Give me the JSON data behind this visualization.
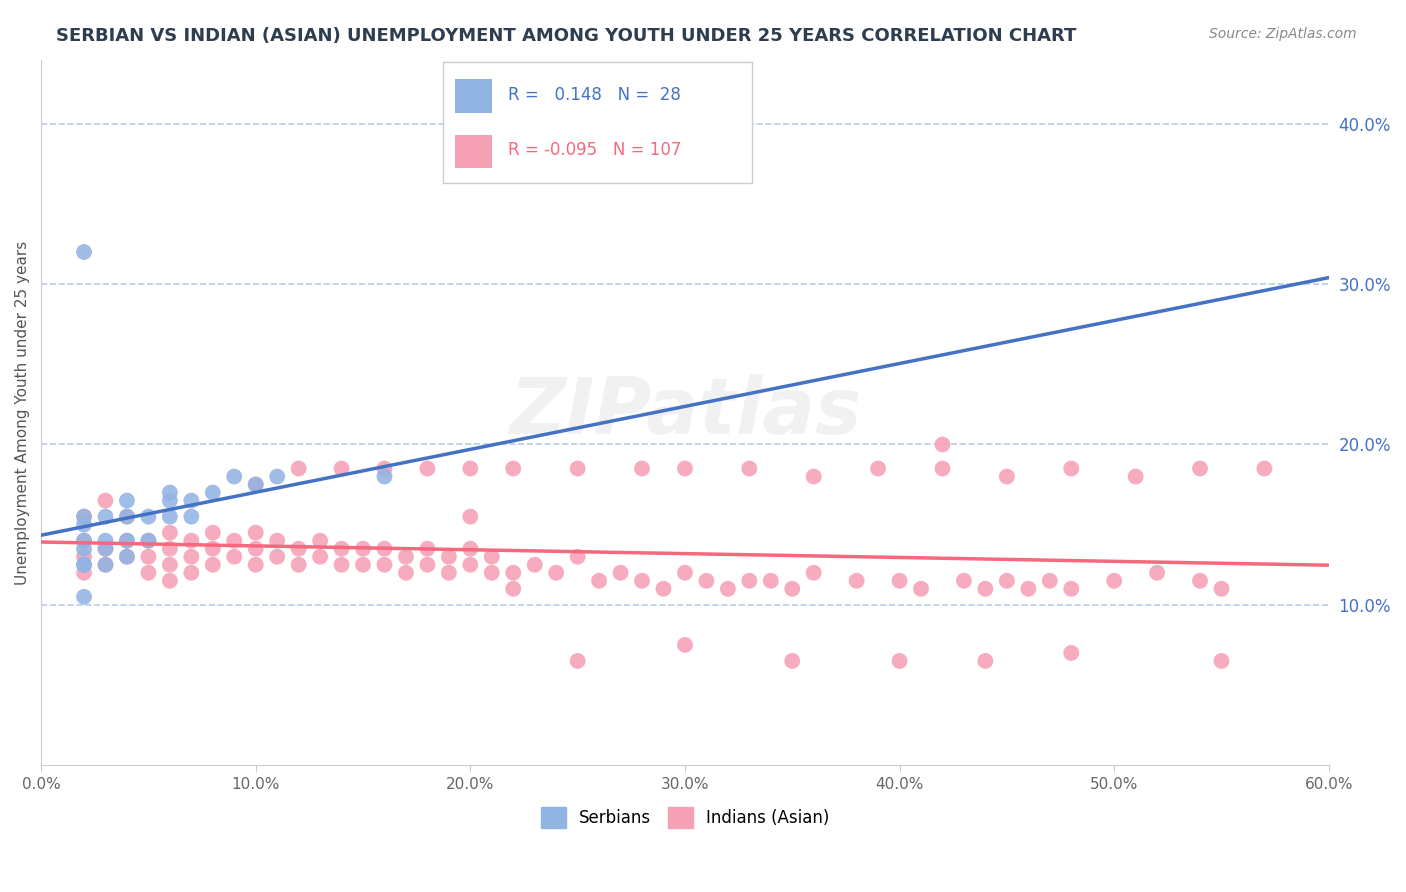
{
  "title": "SERBIAN VS INDIAN (ASIAN) UNEMPLOYMENT AMONG YOUTH UNDER 25 YEARS CORRELATION CHART",
  "source": "Source: ZipAtlas.com",
  "ylabel": "Unemployment Among Youth under 25 years",
  "xlim": [
    0.0,
    0.6
  ],
  "ylim": [
    0.0,
    0.44
  ],
  "xticks": [
    0.0,
    0.1,
    0.2,
    0.3,
    0.4,
    0.5,
    0.6
  ],
  "ytick_labels_right": [
    0.1,
    0.2,
    0.3,
    0.4
  ],
  "background_color": "#ffffff",
  "serbian_color": "#92b4e3",
  "indian_color": "#f5a0b5",
  "serbian_line_color": "#4472c4",
  "indian_line_color": "#f5687e",
  "dashed_line_color": "#b0c8e8",
  "R_serbian": 0.148,
  "N_serbian": 28,
  "R_indian": -0.095,
  "N_indian": 107,
  "serb_x": [
    0.02,
    0.02,
    0.02,
    0.02,
    0.02,
    0.02,
    0.02,
    0.02,
    0.03,
    0.03,
    0.03,
    0.03,
    0.04,
    0.04,
    0.04,
    0.04,
    0.05,
    0.05,
    0.06,
    0.06,
    0.06,
    0.07,
    0.07,
    0.08,
    0.09,
    0.1,
    0.11,
    0.16
  ],
  "serb_y": [
    0.125,
    0.105,
    0.125,
    0.135,
    0.14,
    0.15,
    0.155,
    0.32,
    0.125,
    0.135,
    0.14,
    0.155,
    0.13,
    0.14,
    0.155,
    0.165,
    0.14,
    0.155,
    0.155,
    0.165,
    0.17,
    0.155,
    0.165,
    0.17,
    0.18,
    0.175,
    0.18,
    0.18
  ],
  "ind_x": [
    0.02,
    0.02,
    0.02,
    0.02,
    0.03,
    0.03,
    0.03,
    0.04,
    0.04,
    0.04,
    0.05,
    0.05,
    0.05,
    0.06,
    0.06,
    0.06,
    0.06,
    0.07,
    0.07,
    0.07,
    0.08,
    0.08,
    0.08,
    0.09,
    0.09,
    0.1,
    0.1,
    0.1,
    0.11,
    0.11,
    0.12,
    0.12,
    0.13,
    0.13,
    0.14,
    0.14,
    0.15,
    0.15,
    0.16,
    0.16,
    0.17,
    0.17,
    0.18,
    0.18,
    0.19,
    0.19,
    0.2,
    0.2,
    0.21,
    0.21,
    0.22,
    0.22,
    0.23,
    0.24,
    0.25,
    0.26,
    0.27,
    0.28,
    0.29,
    0.3,
    0.31,
    0.32,
    0.33,
    0.34,
    0.35,
    0.36,
    0.38,
    0.4,
    0.41,
    0.42,
    0.43,
    0.44,
    0.45,
    0.46,
    0.47,
    0.48,
    0.5,
    0.52,
    0.54,
    0.55,
    0.1,
    0.12,
    0.14,
    0.16,
    0.18,
    0.2,
    0.22,
    0.25,
    0.28,
    0.3,
    0.33,
    0.36,
    0.39,
    0.42,
    0.45,
    0.48,
    0.51,
    0.54,
    0.57,
    0.2,
    0.25,
    0.3,
    0.35,
    0.4,
    0.44,
    0.48,
    0.55
  ],
  "ind_y": [
    0.14,
    0.13,
    0.12,
    0.155,
    0.135,
    0.125,
    0.165,
    0.13,
    0.14,
    0.155,
    0.14,
    0.13,
    0.12,
    0.145,
    0.135,
    0.125,
    0.115,
    0.14,
    0.13,
    0.12,
    0.145,
    0.135,
    0.125,
    0.14,
    0.13,
    0.145,
    0.135,
    0.125,
    0.14,
    0.13,
    0.135,
    0.125,
    0.14,
    0.13,
    0.135,
    0.125,
    0.135,
    0.125,
    0.135,
    0.125,
    0.13,
    0.12,
    0.135,
    0.125,
    0.13,
    0.12,
    0.135,
    0.125,
    0.13,
    0.12,
    0.12,
    0.11,
    0.125,
    0.12,
    0.13,
    0.115,
    0.12,
    0.115,
    0.11,
    0.12,
    0.115,
    0.11,
    0.115,
    0.115,
    0.11,
    0.12,
    0.115,
    0.115,
    0.11,
    0.2,
    0.115,
    0.11,
    0.115,
    0.11,
    0.115,
    0.11,
    0.115,
    0.12,
    0.115,
    0.11,
    0.175,
    0.185,
    0.185,
    0.185,
    0.185,
    0.185,
    0.185,
    0.185,
    0.185,
    0.185,
    0.185,
    0.18,
    0.185,
    0.185,
    0.18,
    0.185,
    0.18,
    0.185,
    0.185,
    0.155,
    0.065,
    0.075,
    0.065,
    0.065,
    0.065,
    0.07,
    0.065
  ]
}
